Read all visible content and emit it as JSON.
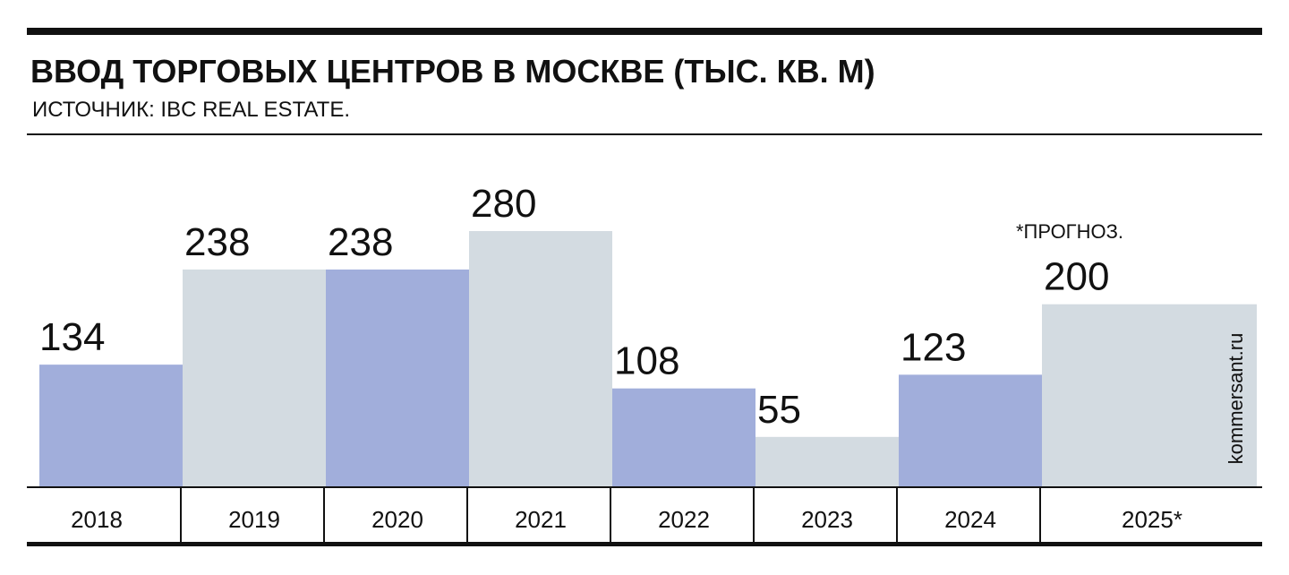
{
  "chart_data": {
    "type": "bar",
    "title": "ВВОД ТОРГОВЫХ ЦЕНТРОВ В МОСКВЕ  (ТЫС. КВ. М)",
    "subtitle": "ИСТОЧНИК: IBC REAL ESTATE.",
    "annotation": "*ПРОГНОЗ.",
    "credit": "kommersant.ru",
    "categories": [
      "2018",
      "2019",
      "2020",
      "2021",
      "2022",
      "2023",
      "2024",
      "2025*"
    ],
    "values": [
      134,
      238,
      238,
      280,
      108,
      55,
      123,
      200
    ],
    "colors": [
      "#a1aedb",
      "#d3dbe1",
      "#a1aedb",
      "#d3dbe1",
      "#a1aedb",
      "#d3dbe1",
      "#a1aedb",
      "#d3dbe1"
    ]
  }
}
